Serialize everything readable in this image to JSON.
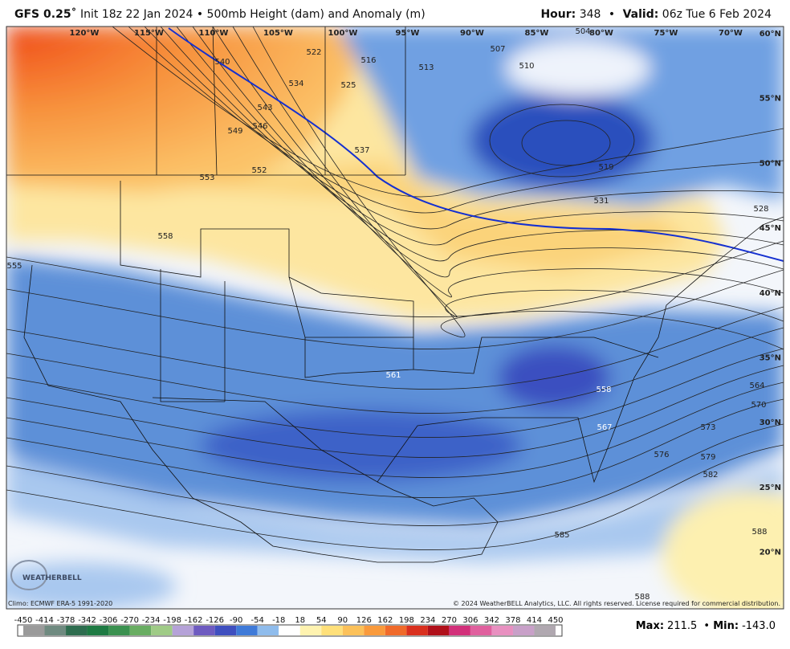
{
  "header": {
    "model": "GFS 0.25˚",
    "description": "Init 18z 22 Jan 2024 • 500mb Height (dam) and Anomaly (m)",
    "hour_label": "Hour:",
    "hour": "348",
    "separator": "•",
    "valid_label": "Valid:",
    "valid": "06z Tue 6 Feb 2024"
  },
  "map": {
    "longitude_labels": [
      "120°W",
      "115°W",
      "110°W",
      "105°W",
      "100°W",
      "95°W",
      "90°W",
      "85°W",
      "80°W",
      "75°W",
      "70°W"
    ],
    "latitude_labels": [
      "60°N",
      "55°N",
      "50°N",
      "45°N",
      "40°N",
      "35°N",
      "30°N",
      "25°N",
      "20°N"
    ],
    "contour_labels": [
      "540",
      "534",
      "543",
      "546",
      "549",
      "552",
      "553",
      "558",
      "555",
      "522",
      "525",
      "537",
      "516",
      "513",
      "507",
      "510",
      "504",
      "519",
      "531",
      "528",
      "561",
      "558",
      "567",
      "573",
      "576",
      "579",
      "582",
      "564",
      "570",
      "585",
      "588",
      "588"
    ],
    "logo": "WEATHERBELL",
    "climo": "Climo: ECMWF ERA-5 1991-2020",
    "copyright": "© 2024 WeatherBELL Analytics, LLC. All rights reserved. License required for commercial distribution."
  },
  "colorbar": {
    "ticks": [
      "-450",
      "-414",
      "-378",
      "-342",
      "-306",
      "-270",
      "-234",
      "-198",
      "-162",
      "-126",
      "-90",
      "-54",
      "-18",
      "18",
      "54",
      "90",
      "126",
      "162",
      "198",
      "234",
      "270",
      "306",
      "342",
      "378",
      "414",
      "450"
    ],
    "colors": [
      "#9a9a9a",
      "#6f8a80",
      "#2e6d4f",
      "#1e7a43",
      "#3b9150",
      "#69ad62",
      "#9fcb86",
      "#b5a2d8",
      "#6e5bc0",
      "#3f4fbf",
      "#3f7ad8",
      "#8fbcec",
      "#ffffff",
      "#fff3b0",
      "#ffe07a",
      "#fcc15a",
      "#f99a3c",
      "#f06a2a",
      "#d9301e",
      "#b0101a",
      "#d2307a",
      "#e0609e",
      "#e890c0",
      "#c8a0c8",
      "#b0a8b0"
    ]
  },
  "stats": {
    "max_label": "Max:",
    "max": "211.5",
    "min_label": "Min:",
    "min": "-143.0"
  }
}
